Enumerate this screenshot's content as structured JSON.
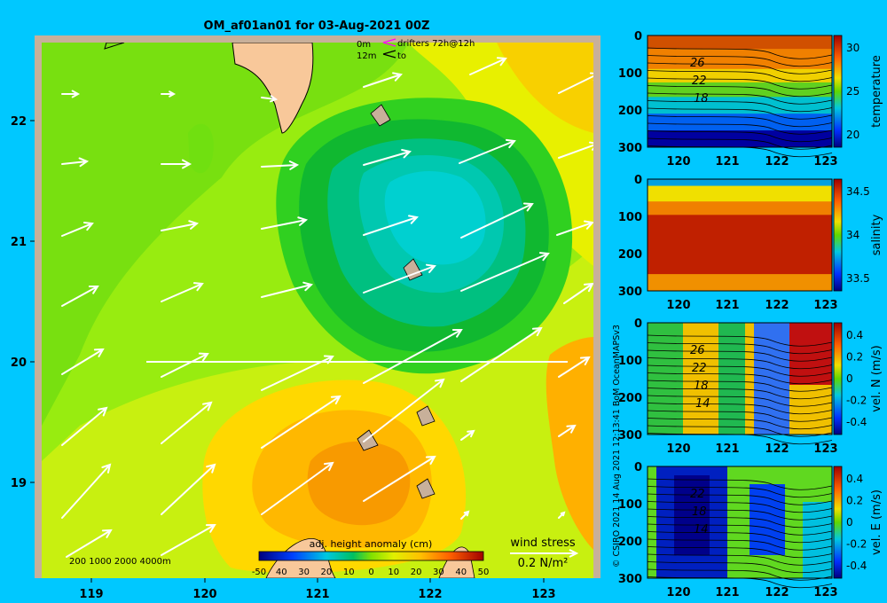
{
  "title": "OM_af01an01 for 03-Aug-2021 00Z",
  "drifters_legend": {
    "row1_depth": "0m",
    "row1_label": "drifters 72h@12h",
    "row2_depth": "12m",
    "row2_label": "to"
  },
  "map": {
    "lon_ticks": [
      "119",
      "120",
      "121",
      "122",
      "123"
    ],
    "lat_ticks": [
      "22",
      "21",
      "20",
      "19"
    ],
    "bathymetry_label": "200  1000  2000  4000m",
    "colorbar_title": "adj. height anomaly (cm)",
    "colorbar_ticks": [
      "-50",
      "40",
      "30",
      "20",
      "10",
      "0",
      "10",
      "20",
      "30",
      "40",
      "50"
    ],
    "wind_stress_label": "wind stress",
    "wind_stress_scale": "0.2 N/m²"
  },
  "sections": [
    {
      "id": "temperature",
      "label": "temperature",
      "y_ticks": [
        "0",
        "100",
        "200",
        "300"
      ],
      "x_ticks": [
        "120",
        "121",
        "122",
        "123"
      ],
      "cbar_ticks": [
        "30",
        "25",
        "20"
      ],
      "contour_labels": [
        "26",
        "22",
        "18"
      ]
    },
    {
      "id": "salinity",
      "label": "salinity",
      "y_ticks": [
        "0",
        "100",
        "200",
        "300"
      ],
      "x_ticks": [
        "120",
        "121",
        "122",
        "123"
      ],
      "cbar_ticks": [
        "34.5",
        "34",
        "33.5"
      ],
      "contour_labels": []
    },
    {
      "id": "vel_n",
      "label": "vel. N (m/s)",
      "y_ticks": [
        "0",
        "100",
        "200",
        "300"
      ],
      "x_ticks": [
        "120",
        "121",
        "122",
        "123"
      ],
      "cbar_ticks": [
        "0.4",
        "0.2",
        "0",
        "-0.2",
        "-0.4"
      ],
      "contour_labels": [
        "26",
        "22",
        "18",
        "14"
      ]
    },
    {
      "id": "vel_e",
      "label": "vel. E (m/s)",
      "y_ticks": [
        "0",
        "100",
        "200",
        "300"
      ],
      "x_ticks": [
        "120",
        "121",
        "122",
        "123"
      ],
      "cbar_ticks": [
        "0.4",
        "0.2",
        "0",
        "-0.2",
        "-0.4"
      ],
      "contour_labels": [
        "22",
        "18",
        "14"
      ]
    }
  ],
  "credit": "© CSIRO 2021   14 Aug 2021 12:13:41 BoM OceanMAPSv3",
  "colors": {
    "background": "#00c8ff",
    "land": "#f8c89a",
    "shelf": "#c8b09a"
  }
}
